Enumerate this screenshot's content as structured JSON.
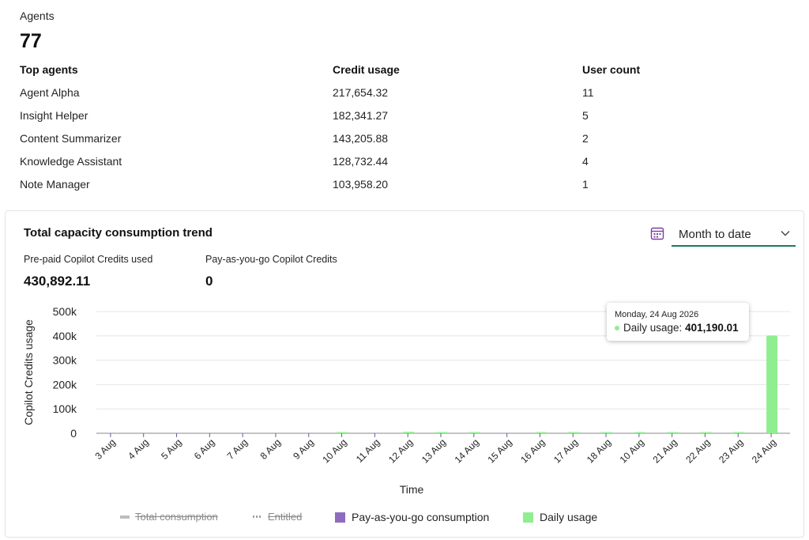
{
  "agents": {
    "label": "Agents",
    "count": "77",
    "table": {
      "headers": [
        "Top agents",
        "Credit usage",
        "User count"
      ],
      "rows": [
        [
          "Agent Alpha",
          "217,654.32",
          "11"
        ],
        [
          "Insight Helper",
          "182,341.27",
          "5"
        ],
        [
          "Content Summarizer",
          "143,205.88",
          "2"
        ],
        [
          "Knowledge Assistant",
          "128,732.44",
          "4"
        ],
        [
          "Note Manager",
          "103,958.20",
          "1"
        ]
      ]
    }
  },
  "trend": {
    "title": "Total capacity consumption trend",
    "range_select": {
      "value": "Month to date",
      "icon": "calendar-icon"
    },
    "metrics": [
      {
        "label": "Pre-paid Copilot Credits used",
        "value": "430,892.11"
      },
      {
        "label": "Pay-as-you-go Copilot Credits",
        "value": "0"
      }
    ],
    "tooltip": {
      "date": "Monday, 24 Aug 2026",
      "series_label": "Daily usage:",
      "value": "401,190.01"
    },
    "legend": [
      "Total consumption",
      "Entitled",
      "Pay-as-you-go consumption",
      "Daily usage"
    ]
  },
  "colors": {
    "daily_usage": "#90ee90",
    "payg": "#8e6bbf",
    "accent_underline": "#1e7a5a",
    "calendar_icon": "#7a3fa0"
  },
  "chart_data": {
    "type": "bar",
    "title": "",
    "xlabel": "Time",
    "ylabel": "Copilot Credits usage",
    "ylim": [
      0,
      500000
    ],
    "yticks": [
      "0",
      "100k",
      "200k",
      "300k",
      "400k",
      "500k"
    ],
    "categories": [
      "3 Aug",
      "4 Aug",
      "5 Aug",
      "6 Aug",
      "7 Aug",
      "8 Aug",
      "9 Aug",
      "10 Aug",
      "11 Aug",
      "12 Aug",
      "13 Aug",
      "14 Aug",
      "15 Aug",
      "16 Aug",
      "17 Aug",
      "18 Aug",
      "10 Aug",
      "21 Aug",
      "22 Aug",
      "23 Aug",
      "24 Aug"
    ],
    "series": [
      {
        "name": "Daily usage",
        "values": [
          0,
          0,
          0,
          0,
          0,
          0,
          0,
          4000,
          0,
          6000,
          1000,
          1000,
          0,
          500,
          500,
          4000,
          1000,
          500,
          500,
          500,
          401190
        ]
      }
    ],
    "grid": true,
    "legend_position": "bottom"
  }
}
